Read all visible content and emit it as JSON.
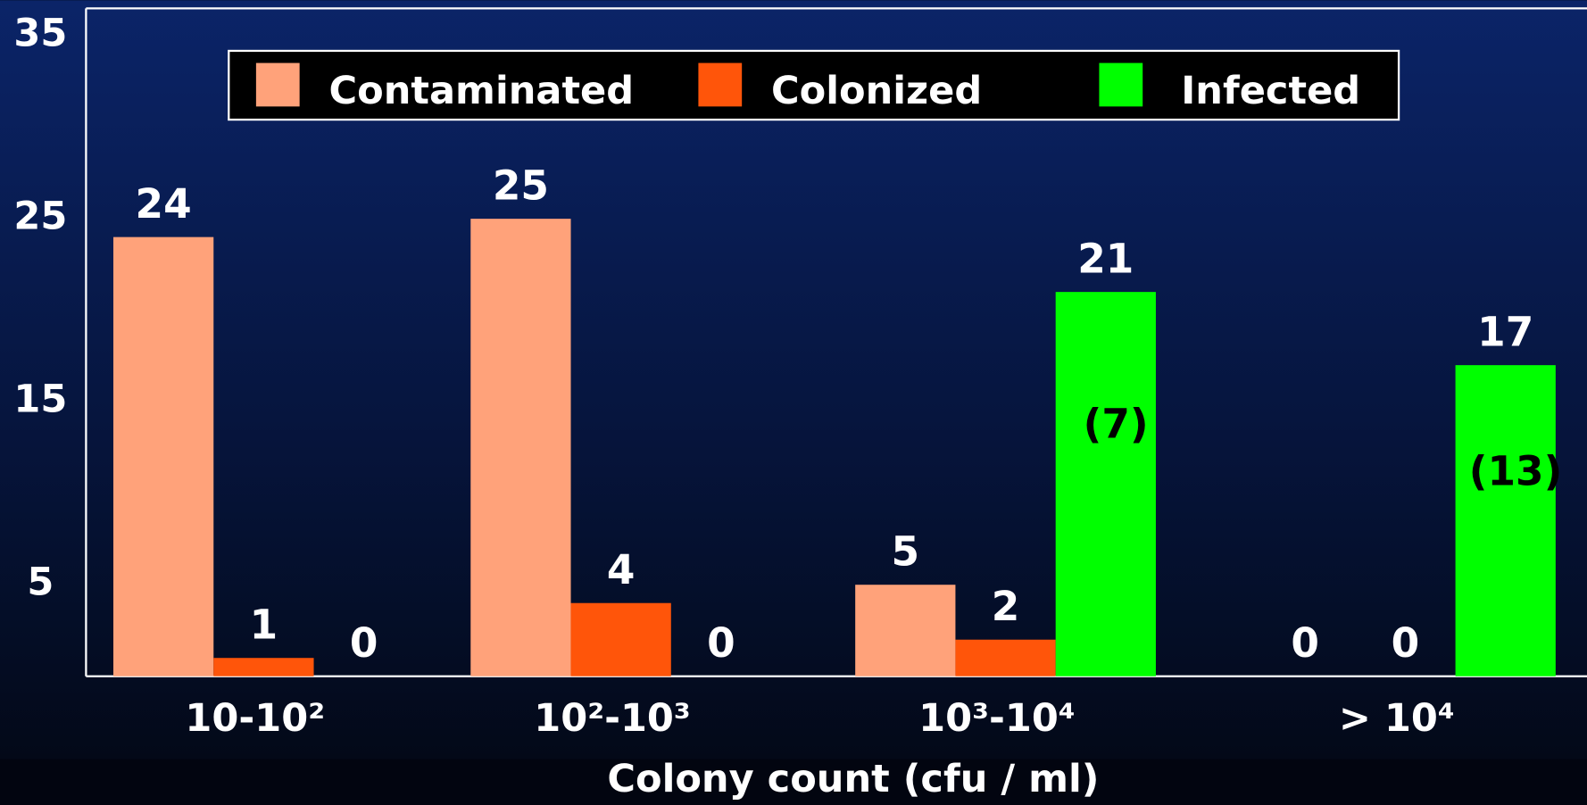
{
  "chart_data": {
    "type": "bar",
    "x_label": "Colony count (cfu / ml)",
    "categories": [
      "10-10²",
      "10²-10³",
      "10³-10⁴",
      "> 10⁴"
    ],
    "series": [
      {
        "name": "Contaminated",
        "color": "#ffa27a",
        "values": [
          24,
          25,
          5,
          0
        ]
      },
      {
        "name": "Colonized",
        "color": "#ff550a",
        "values": [
          1,
          4,
          2,
          0
        ]
      },
      {
        "name": "Infected",
        "color": "#00ff00",
        "values": [
          0,
          0,
          21,
          17
        ],
        "inner_labels": [
          null,
          null,
          "(7)",
          "(13)"
        ]
      }
    ],
    "ylim": [
      0,
      36.5
    ],
    "yticks": [
      5,
      15,
      25,
      35
    ],
    "legend": "top",
    "grid": false
  }
}
